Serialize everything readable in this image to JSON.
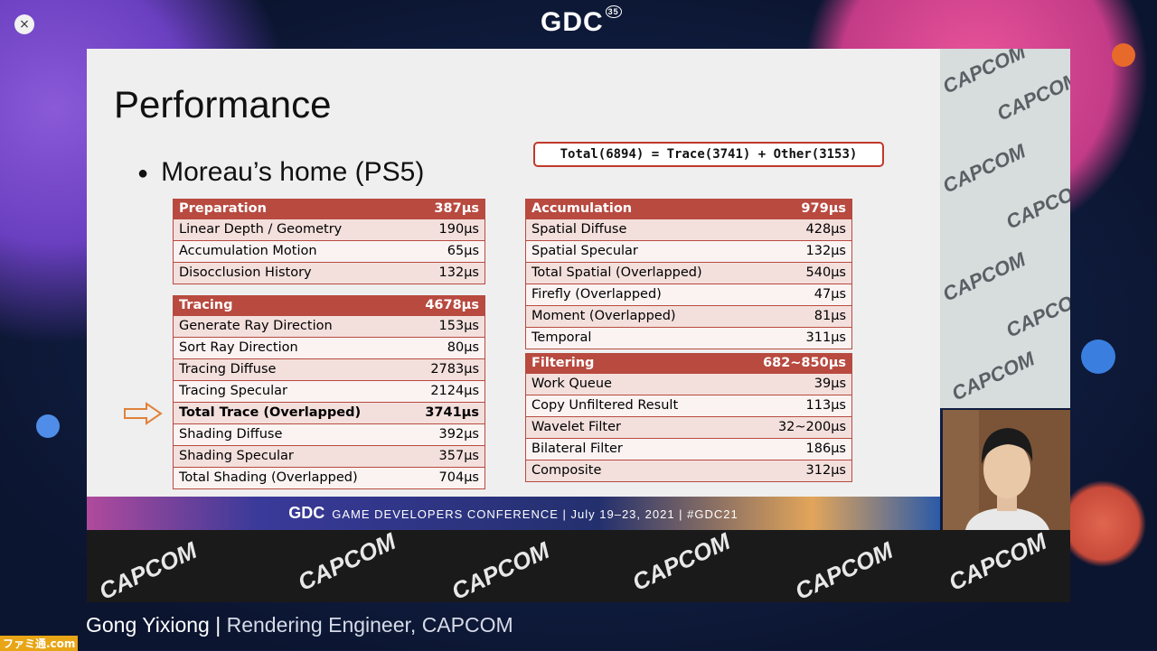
{
  "window": {
    "close_symbol": "×"
  },
  "conference_logo": {
    "text": "GDC",
    "edition": "35"
  },
  "slide": {
    "title": "Performance",
    "bullet": "Moreau’s home (PS5)",
    "total_box": "Total(6894) = Trace(3741) + Other(3153)",
    "preparation": {
      "header": {
        "label": "Preparation",
        "value": "387μs"
      },
      "rows": [
        {
          "label": "Linear Depth / Geometry",
          "value": "190μs"
        },
        {
          "label": "Accumulation Motion",
          "value": "65μs"
        },
        {
          "label": "Disocclusion History",
          "value": "132μs"
        }
      ]
    },
    "tracing": {
      "header": {
        "label": "Tracing",
        "value": "4678μs"
      },
      "rows": [
        {
          "label": "Generate Ray Direction",
          "value": "153μs"
        },
        {
          "label": "Sort Ray Direction",
          "value": "80μs"
        },
        {
          "label": "Tracing Diffuse",
          "value": "2783μs"
        },
        {
          "label": "Tracing Specular",
          "value": "2124μs"
        },
        {
          "label": "Total Trace (Overlapped)",
          "value": "3741μs"
        },
        {
          "label": "Shading Diffuse",
          "value": "392μs"
        },
        {
          "label": "Shading Specular",
          "value": "357μs"
        },
        {
          "label": "Total Shading (Overlapped)",
          "value": "704μs"
        }
      ]
    },
    "accumulation": {
      "header": {
        "label": "Accumulation",
        "value": "979μs"
      },
      "rows": [
        {
          "label": "Spatial Diffuse",
          "value": "428μs"
        },
        {
          "label": "Spatial Specular",
          "value": "132μs"
        },
        {
          "label": "Total Spatial (Overlapped)",
          "value": "540μs"
        },
        {
          "label": "Firefly (Overlapped)",
          "value": "47μs"
        },
        {
          "label": "Moment (Overlapped)",
          "value": "81μs"
        },
        {
          "label": "Temporal",
          "value": "311μs"
        }
      ]
    },
    "filtering": {
      "header": {
        "label": "Filtering",
        "value": "682~850μs"
      },
      "rows": [
        {
          "label": "Work Queue",
          "value": "39μs"
        },
        {
          "label": "Copy Unfiltered Result",
          "value": "113μs"
        },
        {
          "label": "Wavelet Filter",
          "value": "32~200μs"
        },
        {
          "label": "Bilateral Filter",
          "value": "186μs"
        },
        {
          "label": "Composite",
          "value": "312μs"
        }
      ]
    },
    "footer": {
      "logo": "GDC",
      "text": "GAME DEVELOPERS CONFERENCE  |  July 19–23, 2021  |  #GDC21"
    }
  },
  "capcom": "CAPCOM",
  "speaker": {
    "name": "Gong Yixiong",
    "separator": " | ",
    "role": "Rendering Engineer, CAPCOM"
  },
  "watermark": "ファミ通.com",
  "colors": {
    "header_red": "#b84a40",
    "accent_orange": "#e0813a"
  }
}
